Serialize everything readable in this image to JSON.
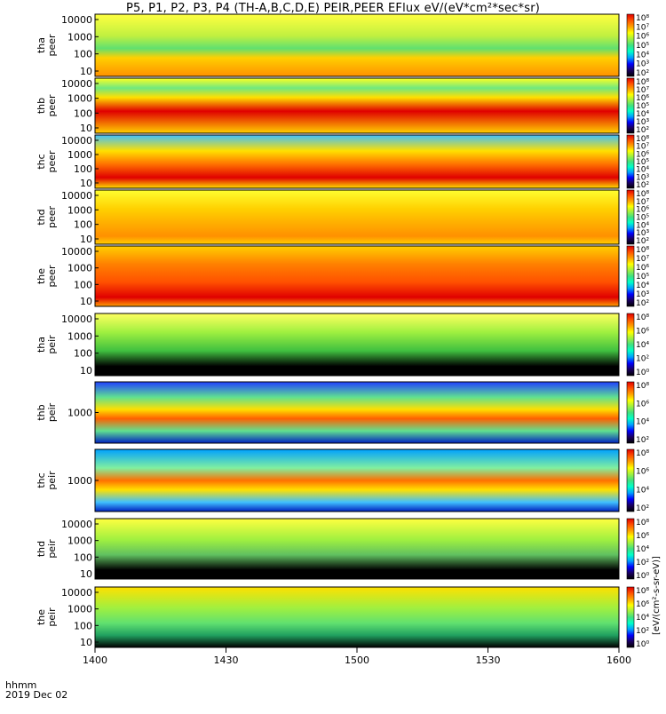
{
  "title": "P5, P1, P2, P3, P4 (TH-A,B,C,D,E) PEIR,PEER EFlux eV/(eV*cm²*sec*sr)",
  "time_axis": {
    "label_format": "hhmm",
    "date": "2019 Dec 02",
    "ticks": [
      "1400",
      "1430",
      "1500",
      "1530",
      "1600"
    ],
    "range_minutes": [
      0,
      120
    ]
  },
  "colorbar_units": "[eV/(cm²-s-sr-eV)]",
  "colors": {
    "palette": [
      "#000000",
      "#1a0060",
      "#0000ff",
      "#00a0ff",
      "#00ffc8",
      "#40e080",
      "#a0f040",
      "#ffff00",
      "#ffa000",
      "#ff5000",
      "#e00000"
    ],
    "background": "#ffffff"
  },
  "chart_data": {
    "type": "heatmap",
    "panels": [
      {
        "probe": "tha",
        "species": "peer",
        "y_ticks": [
          "10000",
          "1000",
          "100",
          "10"
        ],
        "colorbar_ticks": [
          "10⁸",
          "10⁷",
          "10⁶",
          "10⁵",
          "10⁴",
          "10³",
          "10²"
        ]
      },
      {
        "probe": "thb",
        "species": "peer",
        "y_ticks": [
          "10000",
          "1000",
          "100",
          "10"
        ],
        "colorbar_ticks": [
          "10⁸",
          "10⁷",
          "10⁶",
          "10⁵",
          "10⁴",
          "10³",
          "10²"
        ]
      },
      {
        "probe": "thc",
        "species": "peer",
        "y_ticks": [
          "10000",
          "1000",
          "100",
          "10"
        ],
        "colorbar_ticks": [
          "10⁸",
          "10⁷",
          "10⁶",
          "10⁵",
          "10⁴",
          "10³",
          "10²"
        ]
      },
      {
        "probe": "thd",
        "species": "peer",
        "y_ticks": [
          "10000",
          "1000",
          "100",
          "10"
        ],
        "colorbar_ticks": [
          "10⁸",
          "10⁷",
          "10⁶",
          "10⁵",
          "10⁴",
          "10³",
          "10²"
        ]
      },
      {
        "probe": "the",
        "species": "peer",
        "y_ticks": [
          "10000",
          "1000",
          "100",
          "10"
        ],
        "colorbar_ticks": [
          "10⁸",
          "10⁷",
          "10⁶",
          "10⁵",
          "10⁴",
          "10³",
          "10²"
        ]
      },
      {
        "probe": "tha",
        "species": "peir",
        "y_ticks": [
          "10000",
          "1000",
          "100",
          "10"
        ],
        "colorbar_ticks": [
          "10⁸",
          "10⁶",
          "10⁴",
          "10²",
          "10⁰"
        ]
      },
      {
        "probe": "thb",
        "species": "peir",
        "y_ticks": [
          "1000"
        ],
        "colorbar_ticks": [
          "10⁸",
          "10⁶",
          "10⁴",
          "10²"
        ]
      },
      {
        "probe": "thc",
        "species": "peir",
        "y_ticks": [
          "1000"
        ],
        "colorbar_ticks": [
          "10⁸",
          "10⁶",
          "10⁴",
          "10²"
        ]
      },
      {
        "probe": "thd",
        "species": "peir",
        "y_ticks": [
          "10000",
          "1000",
          "100",
          "10"
        ],
        "colorbar_ticks": [
          "10⁸",
          "10⁶",
          "10⁴",
          "10²",
          "10⁰"
        ]
      },
      {
        "probe": "the",
        "species": "peir",
        "y_ticks": [
          "10000",
          "1000",
          "100",
          "10"
        ],
        "colorbar_ticks": [
          "10⁸",
          "10⁶",
          "10⁴",
          "10²",
          "10⁰"
        ]
      }
    ]
  }
}
